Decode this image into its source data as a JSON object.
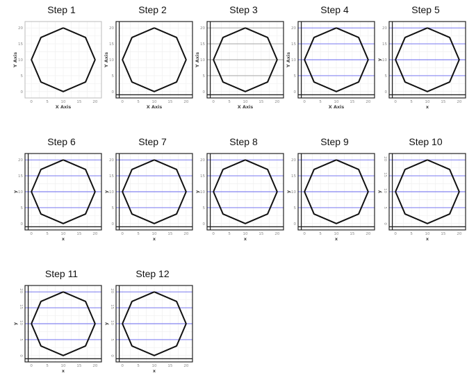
{
  "chart_data": [
    {
      "type": "line",
      "title": "Step 1",
      "xlabel": "X Axis",
      "ylabel": "Y Axis",
      "xlim": [
        -2,
        22
      ],
      "ylim": [
        -2,
        22
      ],
      "xticks": [
        "0",
        "5",
        "10",
        "15",
        "20"
      ],
      "yticks": [
        "0",
        "5",
        "10",
        "15",
        "20"
      ],
      "hlines": [],
      "frame": "light",
      "xlabel_color": "#444444",
      "ylabel_color": "#444444",
      "ytick_rotate": false,
      "series": [
        {
          "x": [
            10,
            17,
            20,
            17,
            10,
            3,
            0,
            3,
            10
          ],
          "y": [
            20,
            17,
            10,
            3,
            0,
            3,
            10,
            17,
            20
          ]
        }
      ]
    },
    {
      "type": "line",
      "title": "Step 2",
      "xlabel": "X Axis",
      "ylabel": "Y Axis",
      "xlim": [
        -2,
        22
      ],
      "ylim": [
        -2,
        22
      ],
      "xticks": [
        "0",
        "5",
        "10",
        "15",
        "20"
      ],
      "yticks": [
        "0",
        "5",
        "10",
        "15",
        "20"
      ],
      "hlines": [],
      "frame": "heavy",
      "xlabel_color": "#444444",
      "ylabel_color": "#444444",
      "ytick_rotate": false,
      "series": [
        {
          "x": [
            10,
            17,
            20,
            17,
            10,
            3,
            0,
            3,
            10
          ],
          "y": [
            20,
            17,
            10,
            3,
            0,
            3,
            10,
            17,
            20
          ]
        }
      ]
    },
    {
      "type": "line",
      "title": "Step 3",
      "xlabel": "X Axis",
      "ylabel": "Y Axis",
      "xlim": [
        -2,
        22
      ],
      "ylim": [
        -2,
        22
      ],
      "xticks": [
        "0",
        "5",
        "10",
        "15",
        "20"
      ],
      "yticks": [
        "0",
        "5",
        "10",
        "15",
        "20"
      ],
      "hlines": [
        20,
        15,
        10,
        5
      ],
      "hline_color": "#9a9a9a",
      "frame": "heavy",
      "xlabel_color": "#444444",
      "ylabel_color": "#444444",
      "ytick_rotate": false,
      "series": [
        {
          "x": [
            10,
            17,
            20,
            17,
            10,
            3,
            0,
            3,
            10
          ],
          "y": [
            20,
            17,
            10,
            3,
            0,
            3,
            10,
            17,
            20
          ]
        }
      ]
    },
    {
      "type": "line",
      "title": "Step 4",
      "xlabel": "X Axis",
      "ylabel": "Y Axis",
      "xlim": [
        -2,
        22
      ],
      "ylim": [
        -2,
        22
      ],
      "xticks": [
        "0",
        "5",
        "10",
        "15",
        "20"
      ],
      "yticks": [
        "0",
        "5",
        "10",
        "15",
        "20"
      ],
      "hlines": [
        20,
        15,
        10,
        5
      ],
      "hline_color": "#6666ee",
      "frame": "heavy",
      "xlabel_color": "#444444",
      "ylabel_color": "#444444",
      "ytick_rotate": false,
      "series": [
        {
          "x": [
            10,
            17,
            20,
            17,
            10,
            3,
            0,
            3,
            10
          ],
          "y": [
            20,
            17,
            10,
            3,
            0,
            3,
            10,
            17,
            20
          ]
        }
      ]
    },
    {
      "type": "line",
      "title": "Step 5",
      "xlabel": "x",
      "ylabel": "y",
      "xlim": [
        -2,
        22
      ],
      "ylim": [
        -2,
        22
      ],
      "xticks": [
        "0",
        "5",
        "10",
        "15",
        "20"
      ],
      "yticks": [
        "0",
        "5",
        "10",
        "15",
        "20"
      ],
      "hlines": [
        20,
        15,
        10,
        5
      ],
      "hline_color": "#6666ee",
      "frame": "heavy",
      "xlabel_color": "#444444",
      "ylabel_color": "#444444",
      "ytick_rotate": false,
      "series": [
        {
          "x": [
            10,
            17,
            20,
            17,
            10,
            3,
            0,
            3,
            10
          ],
          "y": [
            20,
            17,
            10,
            3,
            0,
            3,
            10,
            17,
            20
          ]
        }
      ]
    },
    {
      "type": "line",
      "title": "Step 6",
      "xlabel": "x",
      "ylabel": "y",
      "xlim": [
        -2,
        22
      ],
      "ylim": [
        -2,
        22
      ],
      "xticks": [
        "0",
        "5",
        "10",
        "15",
        "20"
      ],
      "yticks": [
        "0",
        "5",
        "10",
        "15",
        "20"
      ],
      "hlines": [
        20,
        15,
        10,
        5
      ],
      "hline_color": "#6666ee",
      "frame": "heavy",
      "xlabel_color": "#444444",
      "ylabel_color": "#444444",
      "ytick_rotate": false,
      "series": [
        {
          "x": [
            10,
            17,
            20,
            17,
            10,
            3,
            0,
            3,
            10
          ],
          "y": [
            20,
            17,
            10,
            3,
            0,
            3,
            10,
            17,
            20
          ]
        }
      ]
    },
    {
      "type": "line",
      "title": "Step 7",
      "xlabel": "x",
      "ylabel": "y",
      "xlim": [
        -2,
        22
      ],
      "ylim": [
        -2,
        22
      ],
      "xticks": [
        "0",
        "5",
        "10",
        "15",
        "20"
      ],
      "yticks": [
        "0",
        "5",
        "10",
        "15",
        "20"
      ],
      "hlines": [
        20,
        15,
        10,
        5
      ],
      "hline_color": "#6666ee",
      "frame": "heavy",
      "xlabel_color": "#444444",
      "ylabel_color": "#3333cc",
      "ytick_rotate": false,
      "series": [
        {
          "x": [
            10,
            17,
            20,
            17,
            10,
            3,
            0,
            3,
            10
          ],
          "y": [
            20,
            17,
            10,
            3,
            0,
            3,
            10,
            17,
            20
          ]
        }
      ]
    },
    {
      "type": "line",
      "title": "Step 8",
      "xlabel": "x",
      "ylabel": "y",
      "xlim": [
        -2,
        22
      ],
      "ylim": [
        -2,
        22
      ],
      "xticks": [
        "0",
        "5",
        "10",
        "15",
        "20"
      ],
      "yticks": [
        "0",
        "5",
        "10",
        "15",
        "20"
      ],
      "hlines": [
        20,
        15,
        10,
        5
      ],
      "hline_color": "#6666ee",
      "frame": "heavy",
      "xlabel_color": "#ee2222",
      "ylabel_color": "#3333cc",
      "ytick_rotate": false,
      "series": [
        {
          "x": [
            10,
            17,
            20,
            17,
            10,
            3,
            0,
            3,
            10
          ],
          "y": [
            20,
            17,
            10,
            3,
            0,
            3,
            10,
            17,
            20
          ]
        }
      ]
    },
    {
      "type": "line",
      "title": "Step 9",
      "xlabel": "x",
      "ylabel": "y",
      "xlim": [
        -2,
        22
      ],
      "ylim": [
        -2,
        22
      ],
      "xticks": [
        "0",
        "5",
        "10",
        "15",
        "20"
      ],
      "yticks": [
        "0",
        "5",
        "10",
        "15",
        "20"
      ],
      "hlines": [
        20,
        15,
        10,
        5
      ],
      "hline_color": "#6666ee",
      "frame": "heavy",
      "xlabel_color": "#ee2222",
      "ylabel_color": "#3333cc",
      "ytick_rotate": false,
      "series": [
        {
          "x": [
            10,
            17,
            20,
            17,
            10,
            3,
            0,
            3,
            10
          ],
          "y": [
            20,
            17,
            10,
            3,
            0,
            3,
            10,
            17,
            20
          ]
        }
      ]
    },
    {
      "type": "line",
      "title": "Step 10",
      "xlabel": "x",
      "ylabel": "y",
      "xlim": [
        -2,
        22
      ],
      "ylim": [
        -2,
        22
      ],
      "xticks": [
        "0",
        "5",
        "10",
        "15",
        "20"
      ],
      "yticks": [
        "0",
        "5",
        "10",
        "15",
        "20"
      ],
      "hlines": [
        20,
        15,
        10,
        5
      ],
      "hline_color": "#6666ee",
      "frame": "heavy",
      "xlabel_color": "#ee2222",
      "ylabel_color": "#3333cc",
      "ytick_rotate": true,
      "series": [
        {
          "x": [
            10,
            17,
            20,
            17,
            10,
            3,
            0,
            3,
            10
          ],
          "y": [
            20,
            17,
            10,
            3,
            0,
            3,
            10,
            17,
            20
          ]
        }
      ]
    },
    {
      "type": "line",
      "title": "Step 11",
      "xlabel": "x",
      "ylabel": "y",
      "xlim": [
        -2,
        22
      ],
      "ylim": [
        -2,
        22
      ],
      "xticks": [
        "0",
        "5",
        "10",
        "15",
        "20"
      ],
      "yticks": [
        "0",
        "5",
        "10",
        "15",
        "20"
      ],
      "hlines": [
        20,
        15,
        10,
        5
      ],
      "hline_color": "#6666ee",
      "frame": "heavy",
      "xlabel_color": "#ee2222",
      "ylabel_color": "#3333cc",
      "ytick_rotate": true,
      "series": [
        {
          "x": [
            10,
            17,
            20,
            17,
            10,
            3,
            0,
            3,
            10
          ],
          "y": [
            20,
            17,
            10,
            3,
            0,
            3,
            10,
            17,
            20
          ]
        }
      ]
    },
    {
      "type": "line",
      "title": "Step 12",
      "xlabel": "x",
      "ylabel": "y",
      "xlim": [
        -2,
        22
      ],
      "ylim": [
        -2,
        22
      ],
      "xticks": [
        "0",
        "5",
        "10",
        "15",
        "20"
      ],
      "yticks": [
        "0",
        "5",
        "10",
        "15",
        "20"
      ],
      "hlines": [
        20,
        15,
        10,
        5
      ],
      "hline_color": "#6666ee",
      "frame": "heavy",
      "xlabel_color": "#ee2222",
      "ylabel_color": "#3333cc",
      "ytick_rotate": true,
      "series": [
        {
          "x": [
            10,
            17,
            20,
            17,
            10,
            3,
            0,
            3,
            10
          ],
          "y": [
            20,
            17,
            10,
            3,
            0,
            3,
            10,
            17,
            20
          ]
        }
      ]
    }
  ]
}
